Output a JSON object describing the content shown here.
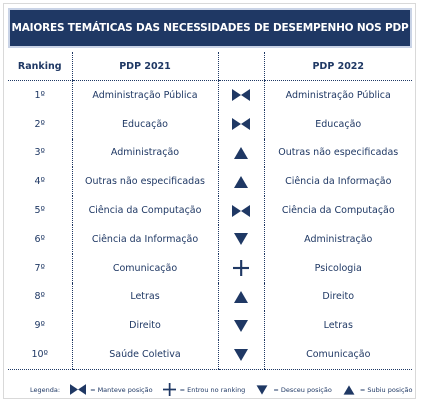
{
  "header": {
    "title": "MAIORES TEMÁTICAS DAS NECESSIDADES DE DESEMPENHO NOS PDP"
  },
  "table": {
    "columns": [
      "Ranking",
      "PDP 2021",
      "PDP 2022"
    ],
    "rows": [
      [
        "1º",
        "Administração Pública",
        "Administração Pública"
      ],
      [
        "2º",
        "Educação",
        "Educação"
      ],
      [
        "3º",
        "Administração",
        "Outras não especificadas"
      ],
      [
        "4º",
        "Outras não especificadas",
        "Ciência da Informação"
      ],
      [
        "5º",
        "Ciência da Computação",
        "Ciência da Computação"
      ],
      [
        "6º",
        "Ciência da Informação",
        "Administração"
      ],
      [
        "7º",
        "Comunicação",
        "Psicologia"
      ],
      [
        "8º",
        "Letras",
        "Direito"
      ],
      [
        "9º",
        "Direito",
        "Letras"
      ],
      [
        "10º",
        "Saúde Coletiva",
        "Comunicação"
      ]
    ]
  },
  "legend": {
    "title": "Legenda:",
    "items": [
      "= Manteve posição",
      "= Entrou no ranking",
      "= Desceu posição",
      "= Subiu posição"
    ]
  }
}
